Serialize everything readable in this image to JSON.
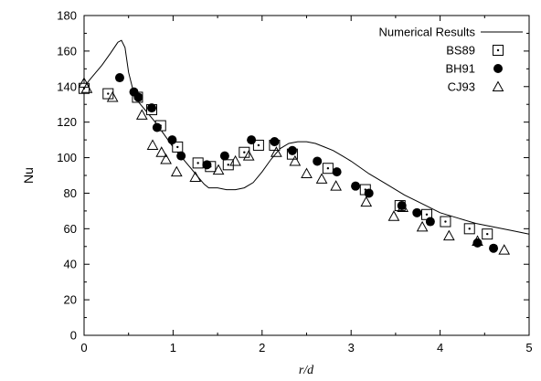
{
  "chart_data": {
    "type": "scatter",
    "title": "",
    "xlabel": "r/d",
    "ylabel": "Nu",
    "xlim": [
      0,
      5
    ],
    "ylim": [
      0,
      180
    ],
    "xticks": [
      "0",
      "1",
      "2",
      "3",
      "4",
      "5"
    ],
    "yticks": [
      "0",
      "20",
      "40",
      "60",
      "80",
      "100",
      "120",
      "140",
      "160",
      "180"
    ],
    "grid": false,
    "legend_position": "top-right",
    "series": [
      {
        "name": "Numerical Results",
        "kind": "line",
        "color": "#000000",
        "points": [
          [
            0.0,
            140
          ],
          [
            0.1,
            146
          ],
          [
            0.2,
            152
          ],
          [
            0.3,
            159
          ],
          [
            0.38,
            165
          ],
          [
            0.42,
            166
          ],
          [
            0.46,
            162
          ],
          [
            0.5,
            148
          ],
          [
            0.55,
            138
          ],
          [
            0.6,
            132
          ],
          [
            0.7,
            126
          ],
          [
            0.8,
            120
          ],
          [
            0.9,
            113
          ],
          [
            1.0,
            106
          ],
          [
            1.1,
            100
          ],
          [
            1.2,
            94
          ],
          [
            1.3,
            88
          ],
          [
            1.35,
            85
          ],
          [
            1.4,
            83
          ],
          [
            1.5,
            83
          ],
          [
            1.6,
            82
          ],
          [
            1.7,
            82
          ],
          [
            1.8,
            83
          ],
          [
            1.9,
            86
          ],
          [
            2.0,
            92
          ],
          [
            2.1,
            99
          ],
          [
            2.2,
            105
          ],
          [
            2.3,
            108
          ],
          [
            2.4,
            109
          ],
          [
            2.5,
            109
          ],
          [
            2.6,
            108
          ],
          [
            2.7,
            106
          ],
          [
            2.8,
            104
          ],
          [
            2.9,
            101
          ],
          [
            3.0,
            98
          ],
          [
            3.2,
            91
          ],
          [
            3.4,
            85
          ],
          [
            3.6,
            79
          ],
          [
            3.8,
            74
          ],
          [
            4.0,
            69
          ],
          [
            4.2,
            66
          ],
          [
            4.4,
            63
          ],
          [
            4.6,
            61
          ],
          [
            4.8,
            59
          ],
          [
            5.0,
            57
          ]
        ]
      },
      {
        "name": "BS89",
        "kind": "marker",
        "marker": "square-dot",
        "points": [
          [
            0.0,
            139
          ],
          [
            0.27,
            136
          ],
          [
            0.6,
            134
          ],
          [
            0.76,
            127
          ],
          [
            0.86,
            118
          ],
          [
            1.05,
            106
          ],
          [
            1.28,
            97
          ],
          [
            1.42,
            95
          ],
          [
            1.62,
            96
          ],
          [
            1.8,
            103
          ],
          [
            1.96,
            107
          ],
          [
            2.14,
            107
          ],
          [
            2.34,
            102
          ],
          [
            2.74,
            94
          ],
          [
            3.16,
            82
          ],
          [
            3.55,
            73
          ],
          [
            3.85,
            68
          ],
          [
            4.06,
            64
          ],
          [
            4.33,
            60
          ],
          [
            4.53,
            57
          ]
        ]
      },
      {
        "name": "BH91",
        "kind": "marker",
        "marker": "circle-filled",
        "points": [
          [
            0.4,
            145
          ],
          [
            0.56,
            137
          ],
          [
            0.61,
            134
          ],
          [
            0.76,
            128
          ],
          [
            0.82,
            117
          ],
          [
            0.99,
            110
          ],
          [
            1.09,
            101
          ],
          [
            1.38,
            96
          ],
          [
            1.58,
            101
          ],
          [
            1.88,
            110
          ],
          [
            2.14,
            109
          ],
          [
            2.34,
            104
          ],
          [
            2.62,
            98
          ],
          [
            2.84,
            92
          ],
          [
            3.05,
            84
          ],
          [
            3.2,
            80
          ],
          [
            3.57,
            73
          ],
          [
            3.74,
            69
          ],
          [
            3.89,
            64
          ],
          [
            4.42,
            52
          ],
          [
            4.6,
            49
          ]
        ]
      },
      {
        "name": "CJ93",
        "kind": "marker",
        "marker": "triangle-open",
        "points": [
          [
            0.0,
            142
          ],
          [
            0.03,
            139
          ],
          [
            0.32,
            134
          ],
          [
            0.65,
            124
          ],
          [
            0.77,
            107
          ],
          [
            0.87,
            103
          ],
          [
            0.92,
            99
          ],
          [
            1.04,
            92
          ],
          [
            1.25,
            89
          ],
          [
            1.51,
            93
          ],
          [
            1.7,
            98
          ],
          [
            1.85,
            101
          ],
          [
            2.16,
            103
          ],
          [
            2.37,
            98
          ],
          [
            2.5,
            91
          ],
          [
            2.67,
            88
          ],
          [
            2.83,
            84
          ],
          [
            3.17,
            75
          ],
          [
            3.48,
            67
          ],
          [
            3.58,
            72
          ],
          [
            3.8,
            61
          ],
          [
            4.1,
            56
          ],
          [
            4.42,
            53
          ],
          [
            4.72,
            48
          ]
        ]
      }
    ]
  }
}
